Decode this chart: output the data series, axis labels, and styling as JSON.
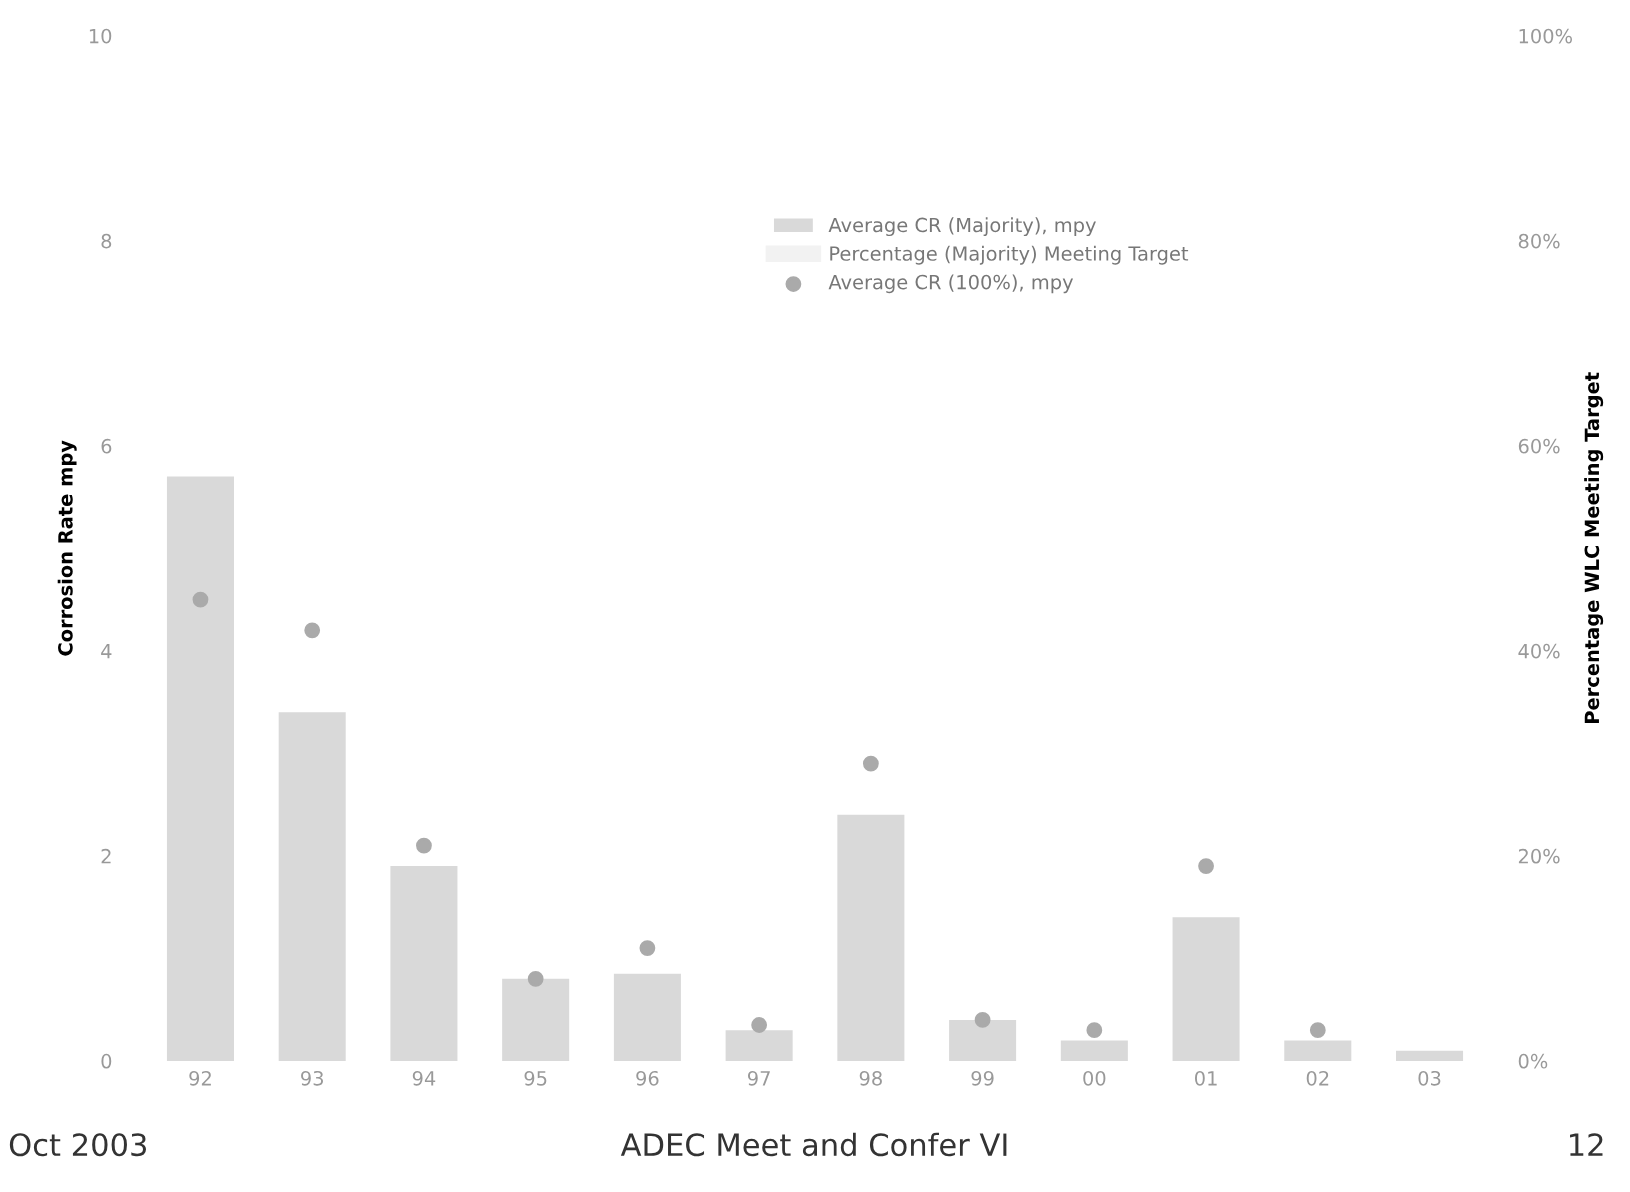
{
  "chart_data": {
    "type": "bar",
    "xlabel": null,
    "ylabel": "Corrosion Rate mpy",
    "y2label": "Percentage WLC Meeting Target",
    "categories": [
      "92",
      "93",
      "94",
      "95",
      "96",
      "97",
      "98",
      "99",
      "00",
      "01",
      "02",
      "03"
    ],
    "series": [
      {
        "name": "Average CR (Majority), mpy",
        "color": "#d9d9d9",
        "values": [
          5.7,
          3.4,
          1.9,
          0.8,
          0.85,
          0.3,
          2.4,
          0.4,
          0.2,
          1.4,
          0.2,
          0.1
        ]
      },
      {
        "name": "Percentage (Majority) Meeting Target",
        "type": "line",
        "color": "#f2f2f2",
        "values": [
          null,
          null,
          null,
          null,
          null,
          null,
          null,
          null,
          null,
          null,
          null,
          null
        ]
      },
      {
        "name": "Average CR (100%), mpy",
        "type": "scatter",
        "color": "#aaaaaa",
        "values": [
          4.5,
          4.2,
          2.1,
          0.8,
          1.1,
          0.35,
          2.9,
          0.4,
          0.3,
          1.9,
          0.3,
          null
        ]
      }
    ],
    "ylim": [
      0,
      10
    ],
    "yticks": [
      0,
      2,
      4,
      6,
      8,
      10
    ],
    "y2lim": [
      0,
      100
    ],
    "y2ticks": [
      {
        "value": 0,
        "label": "0%"
      },
      {
        "value": 20,
        "label": "20%"
      },
      {
        "value": 40,
        "label": "40%"
      },
      {
        "value": 60,
        "label": "60%"
      },
      {
        "value": 80,
        "label": "80%"
      },
      {
        "value": 100,
        "label": "100%"
      }
    ],
    "legend": "top",
    "marker": "circle",
    "grid": false,
    "annotations": [
      "Oct 2003",
      "ADEC Meet and Confer VI",
      "12"
    ]
  }
}
